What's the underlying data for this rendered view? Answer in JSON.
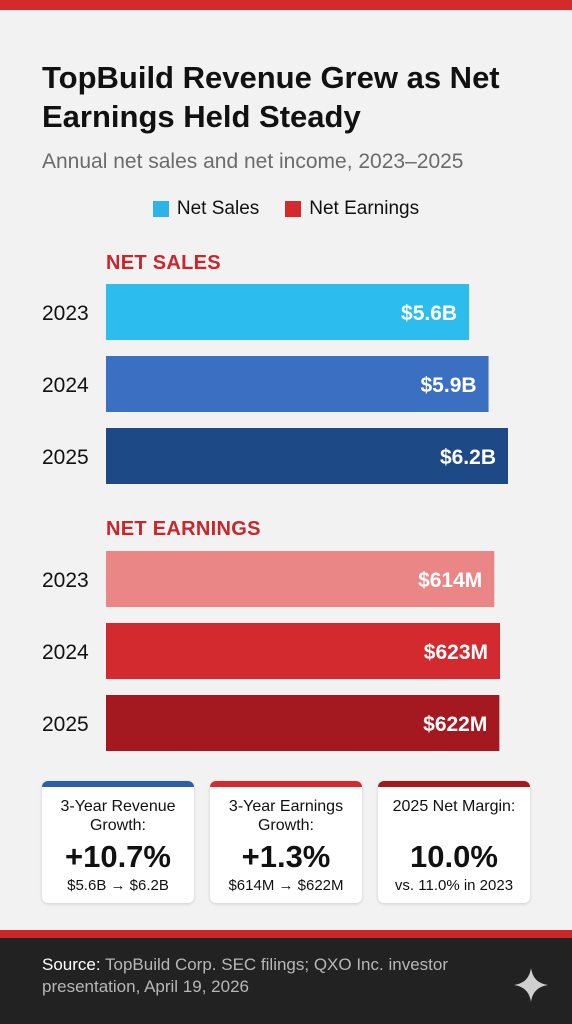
{
  "header": {
    "title": "TopBuild Revenue Grew as Net Earnings Held Steady",
    "subtitle": "Annual net sales and net income, 2023–2025"
  },
  "legend": {
    "items": [
      {
        "label": "Net Sales",
        "color": "#29b5ea"
      },
      {
        "label": "Net Earnings",
        "color": "#d42a2c"
      }
    ]
  },
  "chart_data": [
    {
      "type": "bar",
      "orientation": "horizontal",
      "title": "NET SALES",
      "unit": "billions USD",
      "categories": [
        "2023",
        "2024",
        "2025"
      ],
      "values": [
        5.6,
        5.9,
        6.2
      ],
      "value_labels": [
        "$5.6B",
        "$5.9B",
        "$6.2B"
      ],
      "colors": [
        "#2dbcee",
        "#3a6fc2",
        "#1d4a86"
      ]
    },
    {
      "type": "bar",
      "orientation": "horizontal",
      "title": "NET EARNINGS",
      "unit": "millions USD",
      "categories": [
        "2023",
        "2024",
        "2025"
      ],
      "values": [
        614,
        623,
        622
      ],
      "value_labels": [
        "$614M",
        "$623M",
        "$622M"
      ],
      "colors": [
        "#ea8786",
        "#d22a2e",
        "#a3191f"
      ]
    }
  ],
  "cards": [
    {
      "label": "3-Year Revenue Growth:",
      "value": "+10.7%",
      "detail": "$5.6B → $6.2B",
      "accent": "#2c5fa8"
    },
    {
      "label": "3-Year Earnings Growth:",
      "value": "+1.3%",
      "detail": "$614M → $622M",
      "accent": "#d42a2c"
    },
    {
      "label": "2025 Net Margin:",
      "value": "10.0%",
      "detail": "vs. 11.0% in 2023",
      "accent": "#a3191f"
    }
  ],
  "footer": {
    "source_label": "Source:",
    "source_text": " TopBuild Corp. SEC filings; QXO Inc. investor presentation, April 19, 2026"
  },
  "icons": {
    "corner": "sparkle-icon"
  }
}
